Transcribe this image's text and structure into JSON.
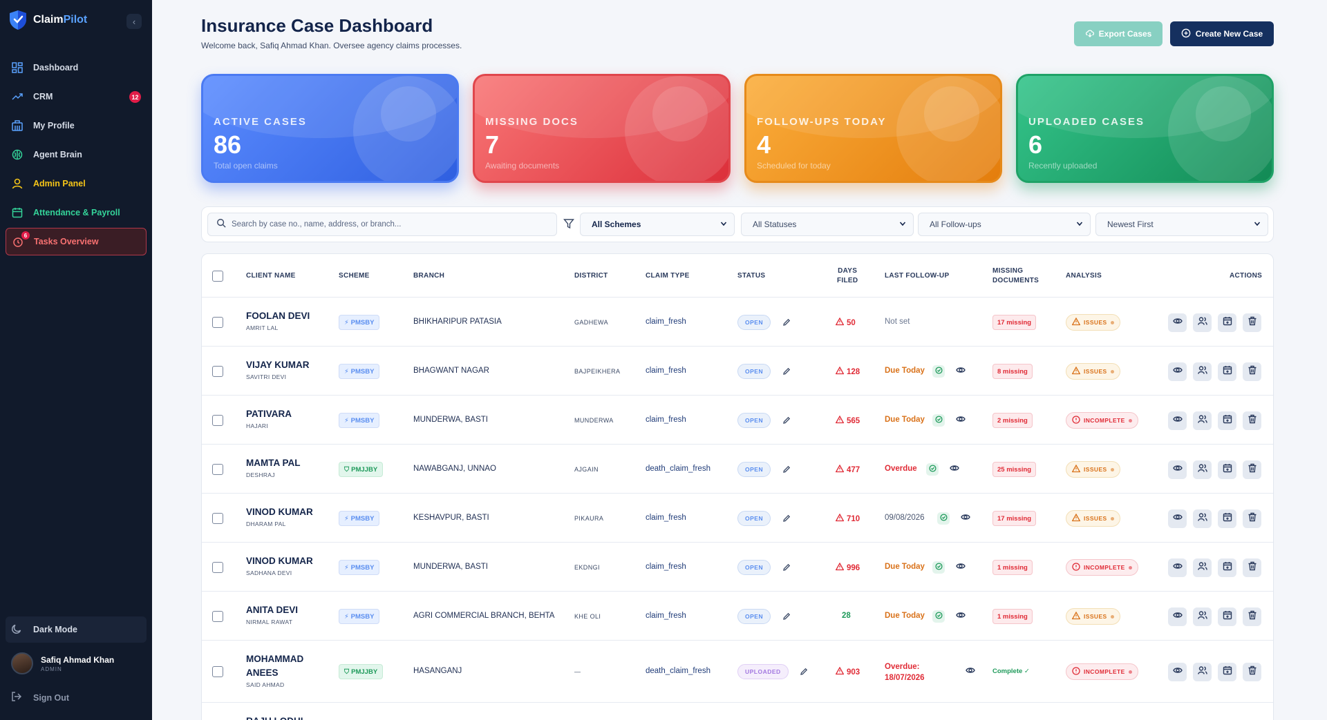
{
  "brand": {
    "name_main": "Claim",
    "name_accent": "Pilot"
  },
  "sidebar": {
    "items": [
      {
        "label": "Dashboard",
        "icon": "grid-icon"
      },
      {
        "label": "CRM",
        "icon": "trend-icon",
        "badge": "12"
      },
      {
        "label": "My Profile",
        "icon": "building-icon"
      },
      {
        "label": "Agent Brain",
        "icon": "brain-icon"
      },
      {
        "label": "Admin Panel",
        "icon": "user-icon"
      },
      {
        "label": "Attendance & Payroll",
        "icon": "calendar-icon"
      },
      {
        "label": "Tasks Overview",
        "icon": "alarm-icon",
        "badge": "6"
      }
    ],
    "dark_mode_label": "Dark Mode",
    "user": {
      "name": "Safiq Ahmad Khan",
      "role": "ADMIN"
    },
    "signout_label": "Sign Out"
  },
  "header": {
    "title": "Insurance Case Dashboard",
    "subtitle": "Welcome back, Safiq Ahmad Khan. Oversee agency claims processes.",
    "export_label": "Export Cases",
    "create_label": "Create New Case"
  },
  "stats": [
    {
      "label": "ACTIVE CASES",
      "value": "86",
      "sub": "Total open claims",
      "color": "#3b6ef0"
    },
    {
      "label": "MISSING DOCS",
      "value": "7",
      "sub": "Awaiting documents",
      "color": "#dc2f3a"
    },
    {
      "label": "FOLLOW-UPS TODAY",
      "value": "4",
      "sub": "Scheduled for today",
      "color": "#e47d0c"
    },
    {
      "label": "UPLOADED CASES",
      "value": "6",
      "sub": "Recently uploaded",
      "color": "#128a55"
    }
  ],
  "filters": {
    "search_placeholder": "Search by case no., name, address, or branch...",
    "scheme": "All Schemes",
    "status": "All Statuses",
    "followup": "All Follow-ups",
    "sort": "Newest First"
  },
  "table": {
    "headers": {
      "client": "CLIENT NAME",
      "scheme": "SCHEME",
      "branch": "BRANCH",
      "district": "DISTRICT",
      "claim_type": "CLAIM TYPE",
      "status": "STATUS",
      "days_1": "DAYS",
      "days_2": "FILED",
      "followup": "LAST FOLLOW-UP",
      "missing_1": "MISSING",
      "missing_2": "DOCUMENTS",
      "analysis": "ANALYSIS",
      "actions": "ACTIONS"
    },
    "rows": [
      {
        "name": "FOOLAN DEVI",
        "sub": "AMRIT LAL",
        "scheme": "PMSBY",
        "branch": "BHIKHARIPUR PATASIA",
        "district": "GADHEWA",
        "claim": "claim_fresh",
        "status": "OPEN",
        "days": "50",
        "followup": "Not set",
        "missing": "17 missing",
        "analysis": "ISSUES"
      },
      {
        "name": "VIJAY KUMAR",
        "sub": "SAVITRI DEVI",
        "scheme": "PMSBY",
        "branch": "BHAGWANT NAGAR",
        "district": "BAJPEIKHERA",
        "claim": "claim_fresh",
        "status": "OPEN",
        "days": "128",
        "followup": "Due Today",
        "missing": "8 missing",
        "analysis": "ISSUES"
      },
      {
        "name": "PATIVARA",
        "sub": "HAJARI",
        "scheme": "PMSBY",
        "branch": "MUNDERWA, BASTI",
        "district": "MUNDERWA",
        "claim": "claim_fresh",
        "status": "OPEN",
        "days": "565",
        "followup": "Due Today",
        "missing": "2 missing",
        "analysis": "INCOMPLETE"
      },
      {
        "name": "MAMTA PAL",
        "sub": "DESHRAJ",
        "scheme": "PMJJBY",
        "branch": "NAWABGANJ, UNNAO",
        "district": "AJGAIN",
        "claim": "death_claim_fresh",
        "status": "OPEN",
        "days": "477",
        "followup": "Overdue",
        "missing": "25 missing",
        "analysis": "ISSUES"
      },
      {
        "name": "VINOD KUMAR",
        "sub": "DHARAM PAL",
        "scheme": "PMSBY",
        "branch": "KESHAVPUR, BASTI",
        "district": "PIKAURA",
        "claim": "claim_fresh",
        "status": "OPEN",
        "days": "710",
        "followup": "09/08/2026",
        "missing": "17 missing",
        "analysis": "ISSUES"
      },
      {
        "name": "VINOD KUMAR",
        "sub": "SADHANA DEVI",
        "scheme": "PMSBY",
        "branch": "MUNDERWA, BASTI",
        "district": "EKDNGI",
        "claim": "claim_fresh",
        "status": "OPEN",
        "days": "996",
        "followup": "Due Today",
        "missing": "1 missing",
        "analysis": "INCOMPLETE"
      },
      {
        "name": "ANITA DEVI",
        "sub": "NIRMAL RAWAT",
        "scheme": "PMSBY",
        "branch": "AGRI COMMERCIAL BRANCH, BEHTA",
        "district": "KHE OLI",
        "claim": "claim_fresh",
        "status": "OPEN",
        "days": "28",
        "followup": "Due Today",
        "missing": "1 missing",
        "analysis": "ISSUES"
      },
      {
        "name_1": "MOHAMMAD",
        "name_2": "ANEES",
        "sub": "SAID AHMAD",
        "scheme": "PMJJBY",
        "branch": "HASANGANJ",
        "district": "—",
        "claim": "death_claim_fresh",
        "status": "UPLOADED",
        "days": "903",
        "followup_1": "Overdue:",
        "followup_2": "18/07/2026",
        "missing": "Complete ✓",
        "analysis": "INCOMPLETE"
      },
      {
        "name": "RAJU LODHI"
      }
    ]
  }
}
